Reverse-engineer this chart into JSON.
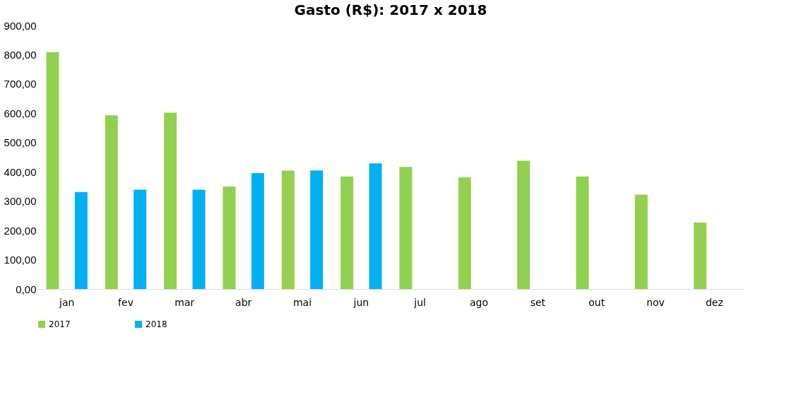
{
  "chart_data": {
    "type": "bar",
    "title": "Gasto (R$): 2017 x 2018",
    "categories": [
      "jan",
      "fev",
      "mar",
      "abr",
      "mai",
      "jun",
      "jul",
      "ago",
      "set",
      "out",
      "nov",
      "dez"
    ],
    "series": [
      {
        "name": "2017",
        "color": "#92d050",
        "values": [
          809,
          593,
          602,
          350,
          405,
          384,
          417,
          381,
          438,
          384,
          322,
          227
        ]
      },
      {
        "name": "2018",
        "color": "#00b0f0",
        "values": [
          331,
          339,
          339,
          396,
          405,
          429,
          null,
          null,
          null,
          null,
          null,
          null
        ]
      }
    ],
    "ylim": [
      0,
      900
    ],
    "yticks": [
      {
        "value": 0,
        "label": "0,00"
      },
      {
        "value": 100,
        "label": "100,00"
      },
      {
        "value": 200,
        "label": "200,00"
      },
      {
        "value": 300,
        "label": "300,00"
      },
      {
        "value": 400,
        "label": "400,00"
      },
      {
        "value": 500,
        "label": "500,00"
      },
      {
        "value": 600,
        "label": "600,00"
      },
      {
        "value": 700,
        "label": "700,00"
      },
      {
        "value": 800,
        "label": "800,00"
      },
      {
        "value": 900,
        "label": "900,00"
      }
    ],
    "grid": false,
    "legend": "bottom"
  }
}
